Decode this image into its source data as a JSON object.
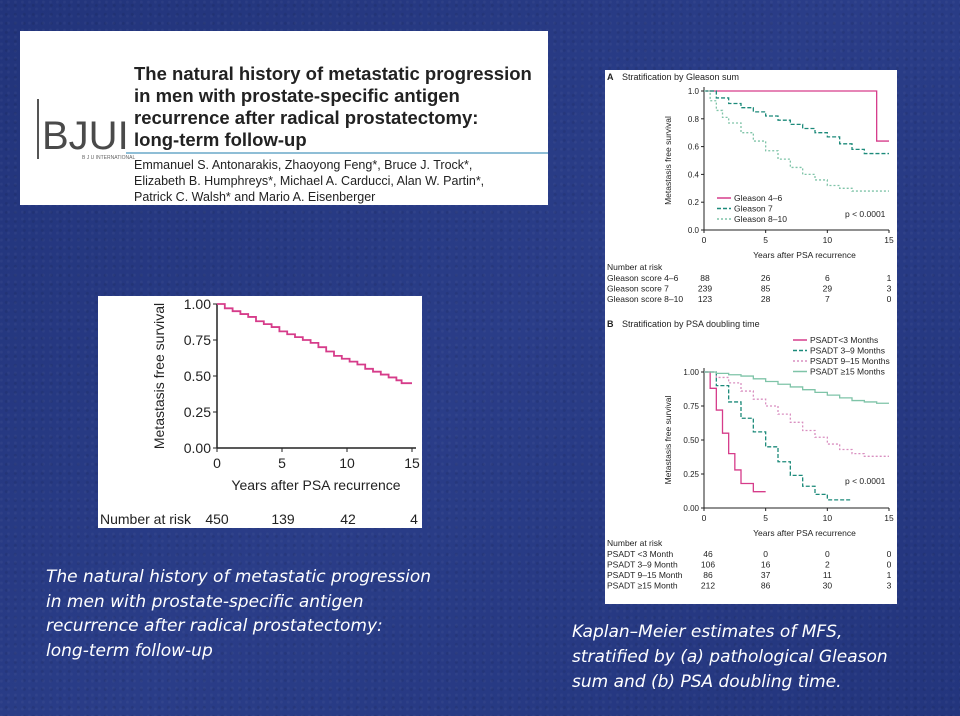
{
  "header": {
    "journal_logo": "BJUI",
    "journal_logo_sub": "B J U INTERNATIONAL",
    "title_lines": [
      "The natural history of metastatic progression",
      "in men with prostate-specific antigen",
      "recurrence after radical prostatectomy:",
      "long-term follow-up"
    ],
    "author_lines": [
      "Emmanuel S. Antonarakis, Zhaoyong Feng*, Bruce J. Trock*,",
      "Elizabeth B. Humphreys*, Michael A. Carducci, Alan W. Partin*,",
      "Patrick C. Walsh* and Mario A. Eisenberger"
    ]
  },
  "left_caption": {
    "lines": [
      "The natural history of metastatic progression",
      "in men with prostate-specific antigen",
      "recurrence after radical prostatectomy:",
      "long-term follow-up"
    ]
  },
  "right_caption": {
    "lines": [
      "Kaplan–Meier estimates of MFS,",
      "stratified by (a) pathological Gleason",
      "sum and (b) PSA doubling time."
    ]
  },
  "chart_data": [
    {
      "type": "line",
      "ylabel": "Metastasis free survival",
      "xlabel": "Years after PSA recurrence",
      "x_ticks": [
        "0",
        "5",
        "10",
        "15"
      ],
      "y_ticks": [
        "0.00",
        "0.25",
        "0.50",
        "0.75",
        "1.00"
      ],
      "xlim": [
        0,
        15
      ],
      "ylim": [
        0,
        1
      ],
      "series": [
        {
          "color": "#d63c8a",
          "style": "step",
          "x": [
            0,
            0.6,
            1.2,
            1.8,
            2.4,
            3.0,
            3.6,
            4.2,
            4.8,
            5.4,
            6.0,
            6.6,
            7.2,
            7.8,
            8.4,
            9.0,
            9.6,
            10.2,
            10.8,
            11.4,
            12.0,
            12.6,
            13.2,
            13.8,
            14.2,
            15
          ],
          "y": [
            1.0,
            0.97,
            0.95,
            0.93,
            0.91,
            0.88,
            0.86,
            0.84,
            0.81,
            0.79,
            0.77,
            0.75,
            0.73,
            0.7,
            0.67,
            0.64,
            0.62,
            0.6,
            0.58,
            0.55,
            0.53,
            0.51,
            0.49,
            0.47,
            0.45,
            0.45
          ]
        }
      ],
      "risk_table": {
        "label": "Number at risk",
        "values": [
          "450",
          "139",
          "42",
          "4"
        ]
      }
    },
    {
      "type": "line",
      "panel_letter": "A",
      "title": "Stratification by Gleason sum",
      "ylabel": "Metastasis free survival",
      "xlabel": "Years after PSA recurrence",
      "x_ticks": [
        "0",
        "5",
        "10",
        "15"
      ],
      "y_ticks": [
        "0.0",
        "0.2",
        "0.4",
        "0.6",
        "0.8",
        "1.0"
      ],
      "xlim": [
        0,
        15
      ],
      "ylim": [
        0,
        1
      ],
      "p_value": "p < 0.0001",
      "series": [
        {
          "name": "Gleason 4–6",
          "color": "#d63c8a",
          "dash": "",
          "x": [
            0,
            14,
            15
          ],
          "y": [
            1.0,
            0.64,
            0.64
          ]
        },
        {
          "name": "Gleason 7",
          "color": "#1c8a7a",
          "dash": "4,2",
          "x": [
            0,
            1,
            2,
            3,
            4,
            5,
            6,
            7,
            8,
            9,
            10,
            11,
            12,
            13,
            15
          ],
          "y": [
            1.0,
            0.95,
            0.91,
            0.88,
            0.85,
            0.82,
            0.79,
            0.76,
            0.73,
            0.7,
            0.67,
            0.62,
            0.58,
            0.55,
            0.55
          ]
        },
        {
          "name": "Gleason 8–10",
          "color": "#7fc4a8",
          "dash": "2,2",
          "x": [
            0,
            0.5,
            1,
            1.5,
            2,
            3,
            4,
            5,
            6,
            7,
            8,
            9,
            10,
            11,
            12,
            15
          ],
          "y": [
            1.0,
            0.93,
            0.86,
            0.81,
            0.77,
            0.7,
            0.64,
            0.57,
            0.51,
            0.45,
            0.4,
            0.36,
            0.32,
            0.3,
            0.28,
            0.28
          ]
        }
      ],
      "risk_table": {
        "label": "Number at risk",
        "rows": [
          {
            "label": "Gleason score 4–6",
            "values": [
              "88",
              "26",
              "6",
              "1"
            ]
          },
          {
            "label": "Gleason score 7",
            "values": [
              "239",
              "85",
              "29",
              "3"
            ]
          },
          {
            "label": "Gleason score 8–10",
            "values": [
              "123",
              "28",
              "7",
              "0"
            ]
          }
        ]
      }
    },
    {
      "type": "line",
      "panel_letter": "B",
      "title": "Stratification by PSA doubling time",
      "ylabel": "Metastasis free survival",
      "xlabel": "Years after PSA recurrence",
      "x_ticks": [
        "0",
        "5",
        "10",
        "15"
      ],
      "y_ticks": [
        "0.00",
        "0.25",
        "0.50",
        "0.75",
        "1.00"
      ],
      "xlim": [
        0,
        15
      ],
      "ylim": [
        0,
        1
      ],
      "p_value": "p < 0.0001",
      "series": [
        {
          "name": "PSADT<3 Months",
          "color": "#d63c8a",
          "dash": "",
          "x": [
            0,
            0.5,
            1,
            1.5,
            2,
            2.5,
            3,
            4,
            5
          ],
          "y": [
            1.0,
            0.88,
            0.72,
            0.55,
            0.4,
            0.28,
            0.18,
            0.12,
            0.12
          ]
        },
        {
          "name": "PSADT 3–9 Months",
          "color": "#1c8a7a",
          "dash": "4,2",
          "x": [
            0,
            1,
            2,
            3,
            4,
            5,
            6,
            7,
            8,
            9,
            10,
            11,
            12
          ],
          "y": [
            1.0,
            0.9,
            0.78,
            0.66,
            0.56,
            0.45,
            0.34,
            0.24,
            0.16,
            0.1,
            0.06,
            0.06,
            0.06
          ]
        },
        {
          "name": "PSADT 9–15 Months",
          "color": "#d98fc0",
          "dash": "2,2",
          "x": [
            0,
            1,
            2,
            3,
            4,
            5,
            6,
            7,
            8,
            9,
            10,
            11,
            12,
            13,
            15
          ],
          "y": [
            1.0,
            0.96,
            0.92,
            0.86,
            0.8,
            0.75,
            0.69,
            0.63,
            0.57,
            0.52,
            0.47,
            0.43,
            0.4,
            0.38,
            0.38
          ]
        },
        {
          "name": "PSADT ≥15 Months",
          "color": "#7fc4a8",
          "dash": "",
          "x": [
            0,
            1,
            2,
            3,
            4,
            5,
            6,
            7,
            8,
            9,
            10,
            11,
            12,
            13,
            14,
            15
          ],
          "y": [
            1.0,
            0.99,
            0.98,
            0.97,
            0.95,
            0.93,
            0.91,
            0.89,
            0.87,
            0.85,
            0.83,
            0.81,
            0.79,
            0.78,
            0.77,
            0.77
          ]
        }
      ],
      "risk_table": {
        "label": "Number at risk",
        "rows": [
          {
            "label": "PSADT <3 Month",
            "values": [
              "46",
              "0",
              "0",
              "0"
            ]
          },
          {
            "label": "PSADT 3–9 Month",
            "values": [
              "106",
              "16",
              "2",
              "0"
            ]
          },
          {
            "label": "PSADT 9–15 Month",
            "values": [
              "86",
              "37",
              "11",
              "1"
            ]
          },
          {
            "label": "PSADT ≥15 Month",
            "values": [
              "212",
              "86",
              "30",
              "3"
            ]
          }
        ]
      }
    }
  ]
}
